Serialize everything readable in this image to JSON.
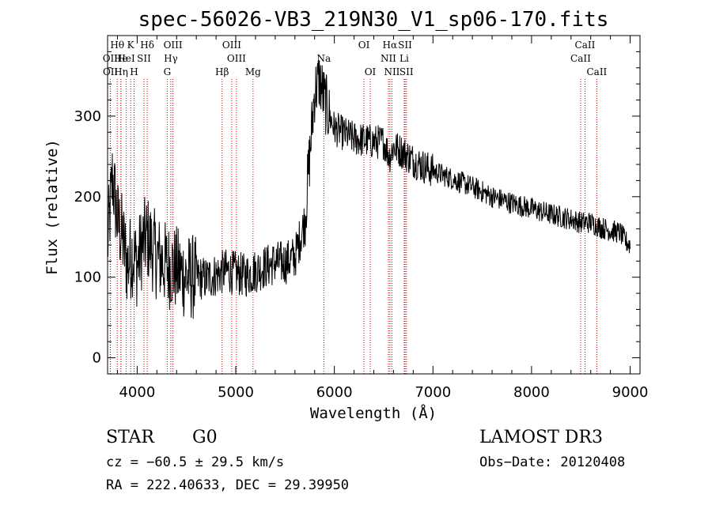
{
  "chart_data": {
    "type": "line",
    "title": "spec-56026-VB3_219N30_V1_sp06-170.fits",
    "xlabel": "Wavelength (Å)",
    "ylabel": "Flux (relative)",
    "xlim": [
      3700,
      9100
    ],
    "ylim": [
      -20,
      400
    ],
    "x_ticks": [
      4000,
      5000,
      6000,
      7000,
      8000,
      9000
    ],
    "y_ticks": [
      0,
      100,
      200,
      300
    ],
    "x_tick_labels": [
      "4000",
      "5000",
      "6000",
      "7000",
      "8000",
      "9000"
    ],
    "y_tick_labels": [
      "0",
      "100",
      "200",
      "300"
    ],
    "line_color": "#000000",
    "marker_color": "#cc0000",
    "series": [
      {
        "name": "spectrum",
        "x": [
          3700,
          3750,
          3800,
          3850,
          3900,
          3950,
          4000,
          4050,
          4100,
          4200,
          4300,
          4400,
          4500,
          4600,
          4700,
          4800,
          4900,
          5000,
          5100,
          5200,
          5300,
          5400,
          5500,
          5600,
          5700,
          5750,
          5800,
          5850,
          5900,
          5950,
          6000,
          6100,
          6200,
          6300,
          6400,
          6500,
          6560,
          6600,
          6700,
          6800,
          6900,
          7000,
          7200,
          7400,
          7600,
          7800,
          8000,
          8200,
          8400,
          8500,
          8600,
          8700,
          8800,
          8900,
          8950,
          9000
        ],
        "y": [
          140,
          225,
          170,
          150,
          115,
          130,
          115,
          140,
          150,
          125,
          115,
          110,
          100,
          100,
          98,
          103,
          108,
          105,
          102,
          108,
          113,
          118,
          118,
          125,
          170,
          250,
          330,
          345,
          320,
          300,
          285,
          278,
          272,
          270,
          268,
          268,
          250,
          262,
          255,
          245,
          238,
          232,
          222,
          212,
          200,
          192,
          185,
          178,
          172,
          168,
          168,
          162,
          158,
          155,
          145,
          140
        ]
      }
    ],
    "spectral_lines": [
      {
        "label": "Hθ",
        "x": 3798,
        "row": 1
      },
      {
        "label": "OII",
        "x": 3727,
        "row": 2
      },
      {
        "label": "He",
        "x": 3835,
        "row": 2
      },
      {
        "label": "OII",
        "x": 3729,
        "row": 3
      },
      {
        "label": "Hη",
        "x": 3836,
        "row": 3
      },
      {
        "label": "K",
        "x": 3934,
        "row": 1
      },
      {
        "label": "HeI",
        "x": 3889,
        "row": 2
      },
      {
        "label": "H",
        "x": 3969,
        "row": 3
      },
      {
        "label": "SII",
        "x": 4069,
        "row": 2
      },
      {
        "label": "Hδ",
        "x": 4102,
        "row": 1
      },
      {
        "label": "OIII",
        "x": 4363,
        "row": 1
      },
      {
        "label": "Hγ",
        "x": 4341,
        "row": 2
      },
      {
        "label": "G",
        "x": 4305,
        "row": 3
      },
      {
        "label": "Hβ",
        "x": 4861,
        "row": 3
      },
      {
        "label": "OIII",
        "x": 4959,
        "row": 1
      },
      {
        "label": "OIII",
        "x": 5007,
        "row": 2
      },
      {
        "label": "Mg",
        "x": 5175,
        "row": 3
      },
      {
        "label": "Na",
        "x": 5893,
        "row": 2
      },
      {
        "label": "OI",
        "x": 6300,
        "row": 1
      },
      {
        "label": "OI",
        "x": 6364,
        "row": 3
      },
      {
        "label": "Hα",
        "x": 6563,
        "row": 1
      },
      {
        "label": "NII",
        "x": 6548,
        "row": 2
      },
      {
        "label": "NII",
        "x": 6584,
        "row": 3
      },
      {
        "label": "SII",
        "x": 6717,
        "row": 1
      },
      {
        "label": "Li",
        "x": 6708,
        "row": 2
      },
      {
        "label": "SII",
        "x": 6731,
        "row": 3
      },
      {
        "label": "CaII",
        "x": 8542,
        "row": 1
      },
      {
        "label": "CaII",
        "x": 8498,
        "row": 2
      },
      {
        "label": "CaII",
        "x": 8662,
        "row": 3
      }
    ]
  },
  "info": {
    "object_class": "STAR",
    "subclass": "G0",
    "survey": "LAMOST DR3",
    "redshift": "cz = −60.5 ± 29.5 km/s",
    "obs_date": "Obs−Date: 20120408",
    "coords": "RA = 222.40633, DEC =  29.39950"
  }
}
